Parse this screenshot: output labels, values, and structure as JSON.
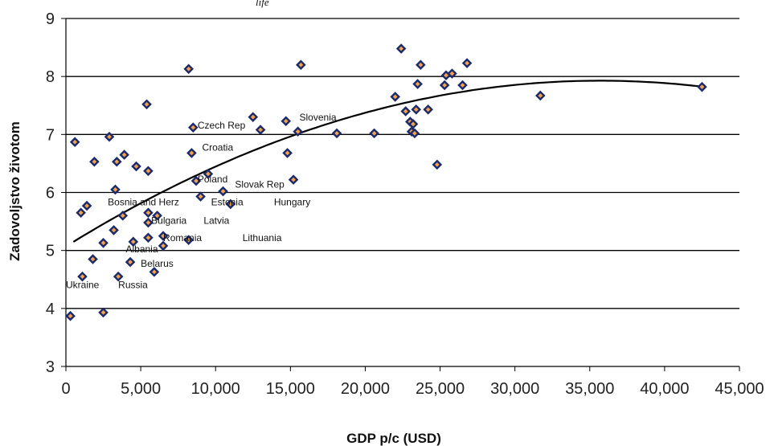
{
  "top_note": "life",
  "colors": {
    "marker_fill": "#f2a14a",
    "marker_edge": "#1a2a6c",
    "grid": "#000000",
    "trend": "#000000"
  },
  "chart_data": {
    "type": "scatter",
    "title": "",
    "xlabel": "GDP p/c (USD)",
    "ylabel": "Zadovoljstvo životom",
    "xlim": [
      0,
      45000
    ],
    "ylim": [
      3,
      9
    ],
    "xticks": [
      0,
      5000,
      10000,
      15000,
      20000,
      25000,
      30000,
      35000,
      40000,
      45000
    ],
    "xtick_labels": [
      "0",
      "5,000",
      "10,000",
      "15,000",
      "20,000",
      "25,000",
      "30,000",
      "35,000",
      "40,000",
      "45,000"
    ],
    "yticks": [
      3,
      4,
      5,
      6,
      7,
      8,
      9
    ],
    "ytick_labels": [
      "3",
      "4",
      "5",
      "6",
      "7",
      "8",
      "9"
    ],
    "grid": "horizontal",
    "trendline": {
      "type": "quadratic",
      "a": 5.07,
      "b": 0.00016,
      "c": -2.24e-09
    },
    "points": [
      [
        300,
        3.87
      ],
      [
        600,
        6.87
      ],
      [
        1000,
        5.65
      ],
      [
        1100,
        4.55
      ],
      [
        1400,
        5.77
      ],
      [
        1800,
        4.85
      ],
      [
        1900,
        6.53
      ],
      [
        2500,
        5.13
      ],
      [
        2500,
        3.93
      ],
      [
        2900,
        6.96
      ],
      [
        3200,
        5.35
      ],
      [
        3300,
        6.05
      ],
      [
        3400,
        6.53
      ],
      [
        3500,
        4.55
      ],
      [
        3800,
        5.6
      ],
      [
        3900,
        6.65
      ],
      [
        4300,
        4.8
      ],
      [
        4500,
        5.15
      ],
      [
        4700,
        6.45
      ],
      [
        5400,
        7.52
      ],
      [
        5500,
        6.37
      ],
      [
        5500,
        5.65
      ],
      [
        5500,
        5.48
      ],
      [
        5500,
        5.22
      ],
      [
        5900,
        4.63
      ],
      [
        6100,
        5.6
      ],
      [
        6500,
        5.25
      ],
      [
        6500,
        5.08
      ],
      [
        8200,
        8.13
      ],
      [
        8200,
        5.18
      ],
      [
        8400,
        6.68
      ],
      [
        8500,
        7.12
      ],
      [
        8700,
        6.2
      ],
      [
        9000,
        5.93
      ],
      [
        9500,
        6.32
      ],
      [
        10500,
        6.02
      ],
      [
        11000,
        5.8
      ],
      [
        12500,
        7.3
      ],
      [
        13000,
        7.08
      ],
      [
        14700,
        7.23
      ],
      [
        14800,
        6.68
      ],
      [
        15200,
        6.22
      ],
      [
        15500,
        7.05
      ],
      [
        15700,
        8.2
      ],
      [
        18100,
        7.02
      ],
      [
        20600,
        7.02
      ],
      [
        22000,
        7.65
      ],
      [
        22400,
        8.48
      ],
      [
        22700,
        7.4
      ],
      [
        23000,
        7.22
      ],
      [
        23100,
        7.05
      ],
      [
        23200,
        7.18
      ],
      [
        23300,
        7.02
      ],
      [
        23400,
        7.43
      ],
      [
        23500,
        7.87
      ],
      [
        23700,
        8.2
      ],
      [
        24200,
        7.43
      ],
      [
        24800,
        6.48
      ],
      [
        25300,
        7.85
      ],
      [
        25400,
        8.02
      ],
      [
        25800,
        8.05
      ],
      [
        26500,
        7.85
      ],
      [
        26800,
        8.23
      ],
      [
        31700,
        7.67
      ],
      [
        42500,
        7.82
      ]
    ],
    "annotations": [
      {
        "text": "Czech Rep",
        "x": 8800,
        "y": 7.1
      },
      {
        "text": "Slovenia",
        "x": 15600,
        "y": 7.24
      },
      {
        "text": "Croatia",
        "x": 9100,
        "y": 6.72
      },
      {
        "text": "Poland",
        "x": 8800,
        "y": 6.17
      },
      {
        "text": "Slovak Rep",
        "x": 11300,
        "y": 6.08
      },
      {
        "text": "Bosnia and Herz",
        "x": 2800,
        "y": 5.78
      },
      {
        "text": "Estonia",
        "x": 9700,
        "y": 5.78
      },
      {
        "text": "Hungary",
        "x": 13900,
        "y": 5.78
      },
      {
        "text": "Bulgaria",
        "x": 5700,
        "y": 5.46
      },
      {
        "text": "Latvia",
        "x": 9200,
        "y": 5.46
      },
      {
        "text": "Romania",
        "x": 6500,
        "y": 5.16
      },
      {
        "text": "Lithuania",
        "x": 11800,
        "y": 5.16
      },
      {
        "text": "Albania",
        "x": 4000,
        "y": 4.97
      },
      {
        "text": "Belarus",
        "x": 5000,
        "y": 4.72
      },
      {
        "text": "Ukraine",
        "x": 0,
        "y": 4.35
      },
      {
        "text": "Russia",
        "x": 3500,
        "y": 4.35
      }
    ]
  }
}
